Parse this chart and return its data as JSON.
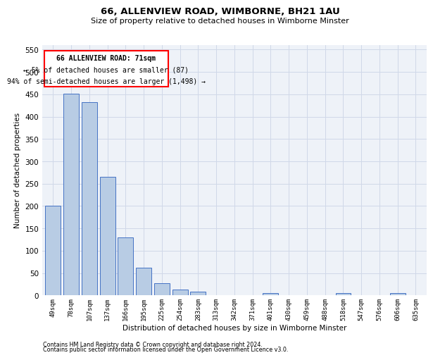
{
  "title1": "66, ALLENVIEW ROAD, WIMBORNE, BH21 1AU",
  "title2": "Size of property relative to detached houses in Wimborne Minster",
  "xlabel": "Distribution of detached houses by size in Wimborne Minster",
  "ylabel": "Number of detached properties",
  "footnote1": "Contains HM Land Registry data © Crown copyright and database right 2024.",
  "footnote2": "Contains public sector information licensed under the Open Government Licence v3.0.",
  "annotation_line1": "66 ALLENVIEW ROAD: 71sqm",
  "annotation_line2": "← 5% of detached houses are smaller (87)",
  "annotation_line3": "94% of semi-detached houses are larger (1,498) →",
  "bar_color": "#b8cce4",
  "bar_edge_color": "#4472c4",
  "categories": [
    "49sqm",
    "78sqm",
    "107sqm",
    "137sqm",
    "166sqm",
    "195sqm",
    "225sqm",
    "254sqm",
    "283sqm",
    "313sqm",
    "342sqm",
    "371sqm",
    "401sqm",
    "430sqm",
    "459sqm",
    "488sqm",
    "518sqm",
    "547sqm",
    "576sqm",
    "606sqm",
    "635sqm"
  ],
  "values": [
    200,
    452,
    432,
    265,
    130,
    62,
    28,
    14,
    8,
    0,
    0,
    0,
    6,
    0,
    0,
    0,
    5,
    0,
    0,
    5,
    0
  ],
  "ylim": [
    0,
    560
  ],
  "yticks": [
    0,
    50,
    100,
    150,
    200,
    250,
    300,
    350,
    400,
    450,
    500,
    550
  ],
  "grid_color": "#d0d8e8",
  "bg_color": "#eef2f8"
}
